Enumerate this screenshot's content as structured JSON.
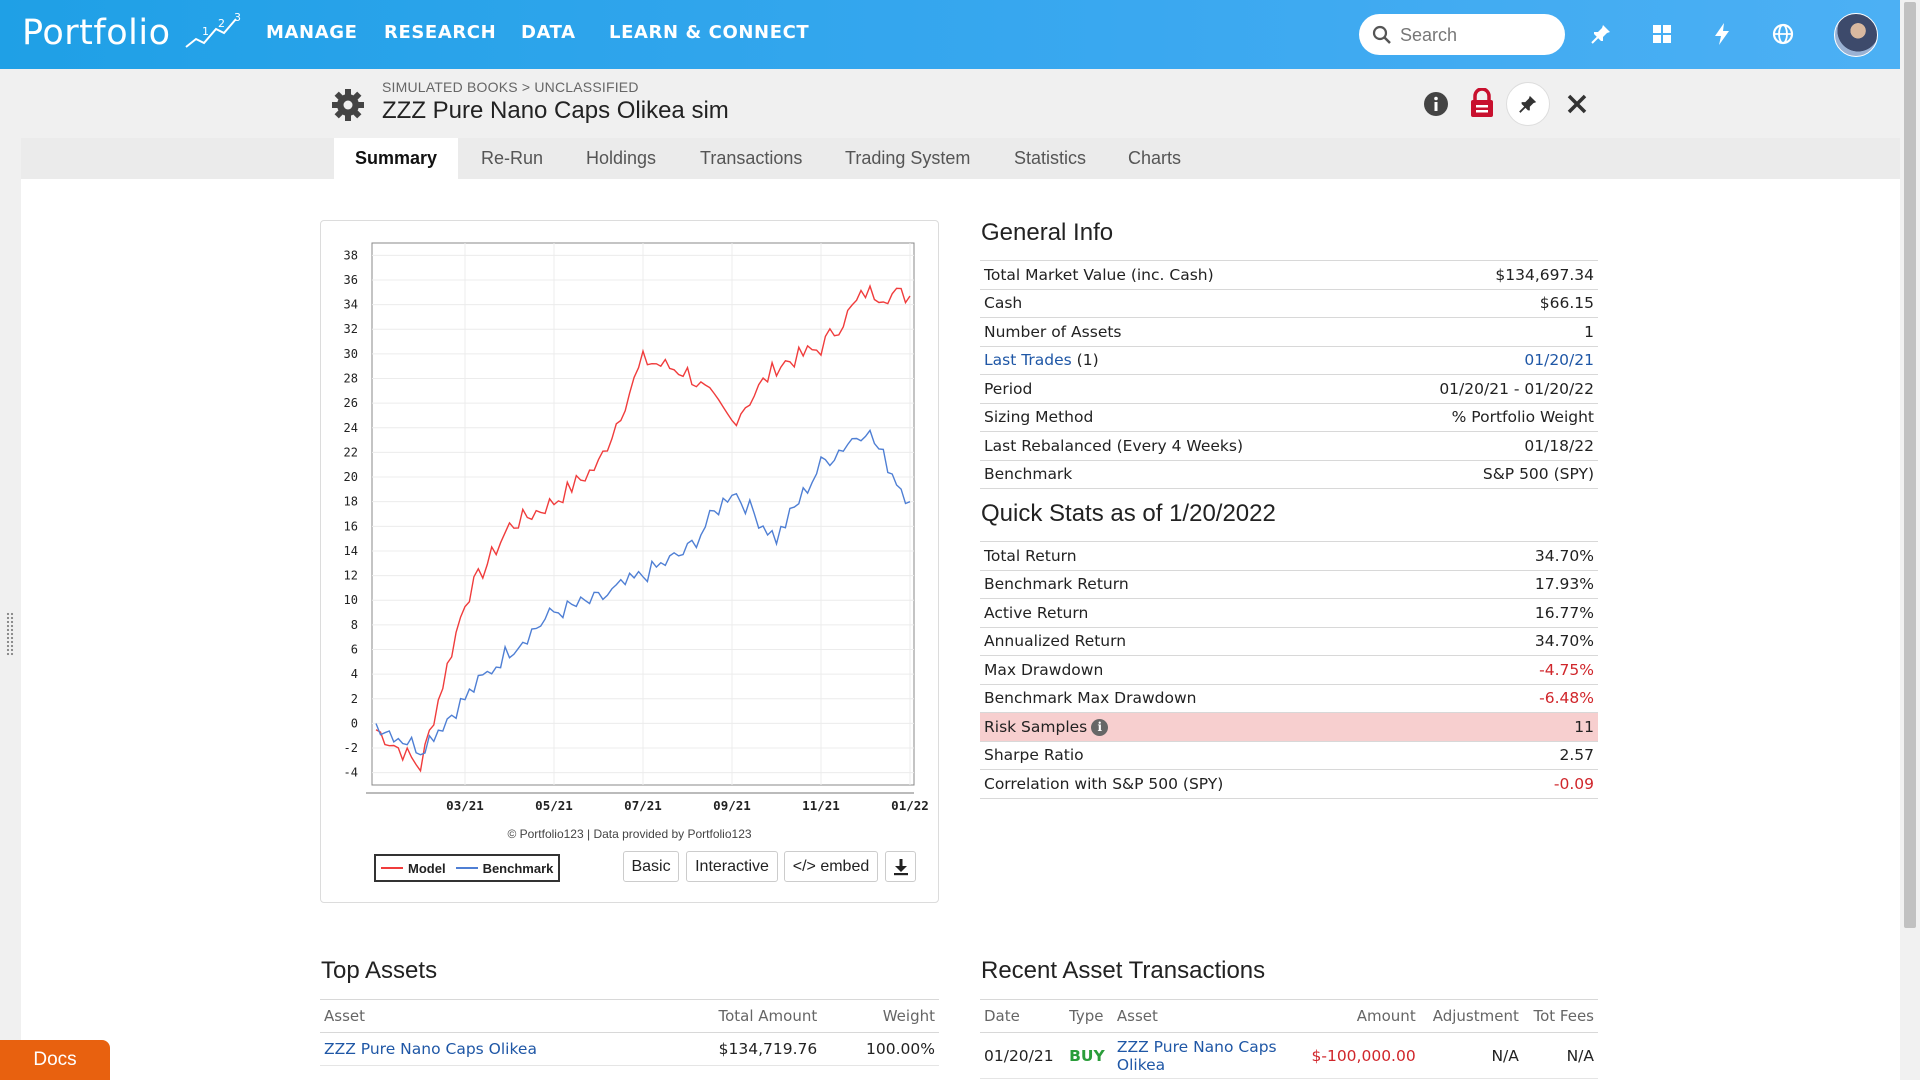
{
  "app": {
    "logo_text": "Portfolio",
    "nav": [
      "MANAGE",
      "RESEARCH",
      "DATA",
      "LEARN & CONNECT"
    ],
    "search_placeholder": "Search",
    "icons": [
      "pin-icon",
      "grid-icon",
      "lightning-icon",
      "globe-icon"
    ]
  },
  "header": {
    "breadcrumb": "SIMULATED BOOKS > UNCLASSIFIED",
    "title": "ZZZ Pure Nano Caps Olikea sim"
  },
  "tabs": [
    {
      "label": "Summary",
      "active": true
    },
    {
      "label": "Re-Run"
    },
    {
      "label": "Holdings"
    },
    {
      "label": "Transactions"
    },
    {
      "label": "Trading System"
    },
    {
      "label": "Statistics"
    },
    {
      "label": "Charts"
    }
  ],
  "chart": {
    "credit": "© Portfolio123 | Data provided by Portfolio123",
    "legend_model": "Model",
    "legend_benchmark": "Benchmark",
    "btn_basic": "Basic",
    "btn_interactive": "Interactive",
    "btn_embed": "</> embed"
  },
  "chart_data": {
    "type": "line",
    "title": "",
    "xlabel": "",
    "ylabel": "",
    "ylim": [
      -5,
      39
    ],
    "yticks": [
      -4,
      -2,
      0,
      2,
      4,
      6,
      8,
      10,
      12,
      14,
      16,
      18,
      20,
      22,
      24,
      26,
      28,
      30,
      32,
      34,
      36,
      38
    ],
    "xticks": [
      "03/21",
      "05/21",
      "07/21",
      "09/21",
      "11/21",
      "01/22"
    ],
    "x": [
      "01/21",
      "02/21",
      "03/21",
      "04/21",
      "05/21",
      "06/21",
      "07/21",
      "08/21",
      "09/21",
      "10/21",
      "11/21",
      "12/21",
      "01/22"
    ],
    "series": [
      {
        "name": "Model",
        "color": "#f03c3c",
        "values": [
          -0.5,
          -3.5,
          10,
          16,
          18,
          21,
          29.5,
          28.5,
          24.5,
          29,
          30.5,
          35,
          34.7
        ]
      },
      {
        "name": "Benchmark",
        "color": "#4f7fd4",
        "values": [
          0,
          -2,
          2,
          6,
          9,
          10,
          12,
          14,
          19,
          15,
          21,
          24,
          18
        ]
      }
    ]
  },
  "general_info": {
    "title": "General Info",
    "rows": [
      {
        "label": "Total Market Value (inc. Cash)",
        "value": "$134,697.34"
      },
      {
        "label": "Cash",
        "value": "$66.15"
      },
      {
        "label": "Number of Assets",
        "value": "1"
      },
      {
        "label": "Last Trades",
        "label_suffix": " (1)",
        "value": "01/20/21"
      },
      {
        "label": "Period",
        "value": "01/20/21 - 01/20/22"
      },
      {
        "label": "Sizing Method",
        "value": "% Portfolio Weight"
      },
      {
        "label": "Last Rebalanced (Every 4 Weeks)",
        "value": "01/18/22"
      },
      {
        "label": "Benchmark",
        "value": "S&P 500 (SPY)"
      }
    ]
  },
  "quick_stats": {
    "title": "Quick Stats as of 1/20/2022",
    "rows": [
      {
        "label": "Total Return",
        "value": "34.70%"
      },
      {
        "label": "Benchmark Return",
        "value": "17.93%"
      },
      {
        "label": "Active Return",
        "value": "16.77%"
      },
      {
        "label": "Annualized Return",
        "value": "34.70%"
      },
      {
        "label": "Max Drawdown",
        "value": "-4.75%"
      },
      {
        "label": "Benchmark Max Drawdown",
        "value": "-6.48%"
      },
      {
        "label": "Risk Samples",
        "value": "11"
      },
      {
        "label": "Sharpe Ratio",
        "value": "2.57"
      },
      {
        "label": "Correlation with S&P 500 (SPY)",
        "value": "-0.09"
      }
    ]
  },
  "top_assets": {
    "title": "Top Assets",
    "headers": [
      "Asset",
      "Total Amount",
      "Weight"
    ],
    "rows": [
      {
        "asset": "ZZZ Pure Nano Caps Olikea",
        "amount": "$134,719.76",
        "weight": "100.00%"
      }
    ]
  },
  "recent_transactions": {
    "title": "Recent Asset Transactions",
    "headers": [
      "Date",
      "Type",
      "Asset",
      "Amount",
      "Adjustment",
      "Tot Fees"
    ],
    "rows": [
      {
        "date": "01/20/21",
        "type": "BUY",
        "asset_line1": "ZZZ Pure Nano Caps",
        "asset_line2": "Olikea",
        "amount": "$-100,000.00",
        "adjustment": "N/A",
        "fees": "N/A"
      }
    ]
  },
  "docs_label": "Docs"
}
